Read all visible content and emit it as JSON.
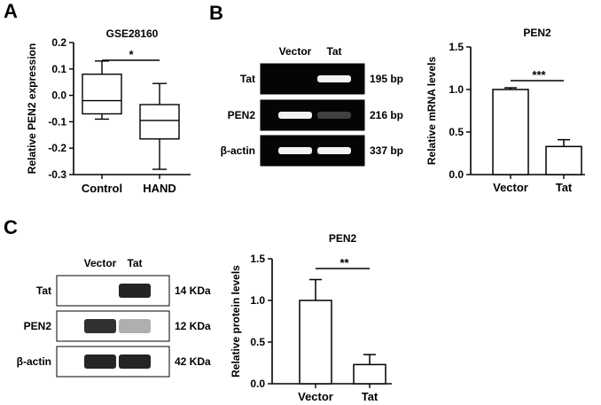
{
  "panels": {
    "A": {
      "letter": "A"
    },
    "B": {
      "letter": "B"
    },
    "C": {
      "letter": "C"
    }
  },
  "rt_pcr": {
    "lanes": [
      "Vector",
      "Tat"
    ],
    "rows": [
      {
        "label": "Tat",
        "size": "195 bp",
        "intensity": [
          0.0,
          0.95
        ]
      },
      {
        "label": "PEN2",
        "size": "216 bp",
        "intensity": [
          0.95,
          0.25
        ]
      },
      {
        "label": "β-actin",
        "size": "337 bp",
        "intensity": [
          0.95,
          0.95
        ]
      }
    ]
  },
  "western_blot": {
    "lanes": [
      "Vector",
      "Tat"
    ],
    "rows": [
      {
        "label": "Tat",
        "size": "14 KDa",
        "intensity": [
          0.0,
          0.95
        ]
      },
      {
        "label": "PEN2",
        "size": "12 KDa",
        "intensity": [
          0.9,
          0.35
        ]
      },
      {
        "label": "β-actin",
        "size": "42 KDa",
        "intensity": [
          0.95,
          0.95
        ]
      }
    ]
  },
  "chart_data": [
    {
      "id": "boxplot-A",
      "type": "box",
      "title": "GSE28160",
      "ylabel": "Relative PEN2 expression",
      "xlabel": "",
      "categories": [
        "Control",
        "HAND"
      ],
      "boxes": [
        {
          "name": "Control",
          "min": -0.09,
          "q1": -0.07,
          "median": -0.02,
          "q3": 0.08,
          "max": 0.13
        },
        {
          "name": "HAND",
          "min": -0.28,
          "q1": -0.165,
          "median": -0.095,
          "q3": -0.035,
          "max": 0.045
        }
      ],
      "ylim": [
        -0.3,
        0.2
      ],
      "yticks": [
        0.2,
        0.1,
        0.0,
        -0.1,
        -0.2,
        -0.3
      ],
      "yticklabels": [
        "0.2",
        "0.1",
        "0.0",
        "-0.1",
        "-0.2",
        "-0.3"
      ],
      "significance": "*"
    },
    {
      "id": "bar-B",
      "type": "bar",
      "title": "PEN2",
      "ylabel": "Relative mRNA levels",
      "xlabel": "",
      "categories": [
        "Vector",
        "Tat"
      ],
      "values": [
        1.0,
        0.33
      ],
      "errors": [
        0.02,
        0.08
      ],
      "ylim": [
        0,
        1.5
      ],
      "yticks": [
        0,
        0.5,
        1.0,
        1.5
      ],
      "yticklabels": [
        "0.0",
        "0.5",
        "1.0",
        "1.5"
      ],
      "significance": "***"
    },
    {
      "id": "bar-C",
      "type": "bar",
      "title": "PEN2",
      "ylabel": "Relative protein levels",
      "xlabel": "",
      "categories": [
        "Vector",
        "Tat"
      ],
      "values": [
        1.0,
        0.23
      ],
      "errors": [
        0.25,
        0.12
      ],
      "ylim": [
        0,
        1.5
      ],
      "yticks": [
        0,
        0.5,
        1.0,
        1.5
      ],
      "yticklabels": [
        "0.0",
        "0.5",
        "1.0",
        "1.5"
      ],
      "significance": "**"
    }
  ]
}
